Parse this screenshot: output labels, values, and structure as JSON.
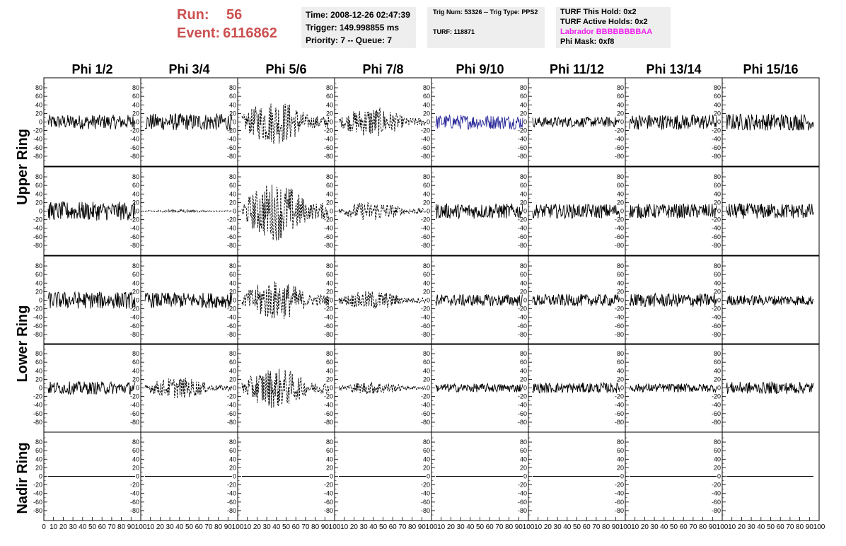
{
  "header": {
    "run_label": "Run:",
    "run_value": "56",
    "event_label": "Event:",
    "event_value": "6116862"
  },
  "time_panel": {
    "time": "Time: 2008-12-26 02:47:39",
    "trigger": "Trigger: 149.998855 ms",
    "priority": "Priority: 7 -- Queue: 7"
  },
  "trig_panel": {
    "trig": "Trig Num: 53326 -- Trig Type: PPS2",
    "turf": "TURF: 118871"
  },
  "turf_panel": {
    "this_hold": "TURF This Hold: 0x2",
    "active_holds": "TURF Active Holds: 0x2",
    "labrador": "Labrador BBBBBBBBAA",
    "phi_mask": "Phi Mask: 0xf8"
  },
  "columns": [
    "Phi 1/2",
    "Phi 3/4",
    "Phi 5/6",
    "Phi 7/8",
    "Phi 9/10",
    "Phi 11/12",
    "Phi 13/14",
    "Phi 15/16"
  ],
  "ring_labels": {
    "upper": "Upper Ring",
    "lower": "Lower Ring",
    "nadir": "Nadir Ring"
  },
  "y_ticks": [
    "80",
    "60",
    "40",
    "20",
    "0",
    "-20",
    "-40",
    "-60",
    "-80"
  ],
  "x_tick_labels": {
    "first": [
      "0",
      "10",
      "20",
      "30",
      "40",
      "50",
      "60",
      "70",
      "80",
      "90",
      "100"
    ],
    "others": [
      "10",
      "20",
      "30",
      "40",
      "50",
      "60",
      "70",
      "80",
      "90",
      "100"
    ]
  },
  "colors": {
    "run_text": "#cc5050",
    "panel_bg": "#eeeeee",
    "labrador": "#ee22ee",
    "waveform": "#000000",
    "highlight_waveform": "#2a2a9a"
  },
  "chart_data": {
    "type": "line",
    "xlim": [
      0,
      100
    ],
    "ylim": [
      -90,
      90
    ],
    "rows": [
      "Upper Ring row 1",
      "Upper Ring row 2",
      "Lower Ring row 1",
      "Lower Ring row 2",
      "Nadir Ring"
    ],
    "cells": [
      [
        {
          "amp": 17,
          "style": "solid"
        },
        {
          "amp": 20,
          "style": "solid"
        },
        {
          "amp": 42,
          "style": "dashed"
        },
        {
          "amp": 28,
          "style": "dashed"
        },
        {
          "amp": 17,
          "style": "solid",
          "color": "blue"
        },
        {
          "amp": 12,
          "style": "solid"
        },
        {
          "amp": 18,
          "style": "solid"
        },
        {
          "amp": 20,
          "style": "solid"
        }
      ],
      [
        {
          "amp": 22,
          "style": "solid"
        },
        {
          "amp": 3,
          "style": "dashed"
        },
        {
          "amp": 55,
          "style": "dashed"
        },
        {
          "amp": 18,
          "style": "dashed"
        },
        {
          "amp": 18,
          "style": "solid"
        },
        {
          "amp": 17,
          "style": "solid"
        },
        {
          "amp": 17,
          "style": "solid"
        },
        {
          "amp": 18,
          "style": "solid"
        }
      ],
      [
        {
          "amp": 20,
          "style": "solid"
        },
        {
          "amp": 18,
          "style": "solid"
        },
        {
          "amp": 38,
          "style": "dashed"
        },
        {
          "amp": 18,
          "style": "dashed"
        },
        {
          "amp": 14,
          "style": "solid"
        },
        {
          "amp": 14,
          "style": "solid"
        },
        {
          "amp": 16,
          "style": "solid"
        },
        {
          "amp": 12,
          "style": "solid"
        }
      ],
      [
        {
          "amp": 15,
          "style": "solid"
        },
        {
          "amp": 20,
          "style": "dashed"
        },
        {
          "amp": 38,
          "style": "dashed"
        },
        {
          "amp": 12,
          "style": "dashed"
        },
        {
          "amp": 10,
          "style": "solid"
        },
        {
          "amp": 12,
          "style": "solid"
        },
        {
          "amp": 10,
          "style": "solid"
        },
        {
          "amp": 14,
          "style": "solid"
        }
      ],
      [
        {
          "amp": 0,
          "style": "solid"
        },
        {
          "amp": 0,
          "style": "solid"
        },
        {
          "amp": 0,
          "style": "solid"
        },
        {
          "amp": 0,
          "style": "solid"
        },
        {
          "amp": 0,
          "style": "solid"
        },
        {
          "amp": 0,
          "style": "solid"
        },
        {
          "amp": 0,
          "style": "solid"
        },
        {
          "amp": 0,
          "style": "solid"
        }
      ]
    ]
  }
}
